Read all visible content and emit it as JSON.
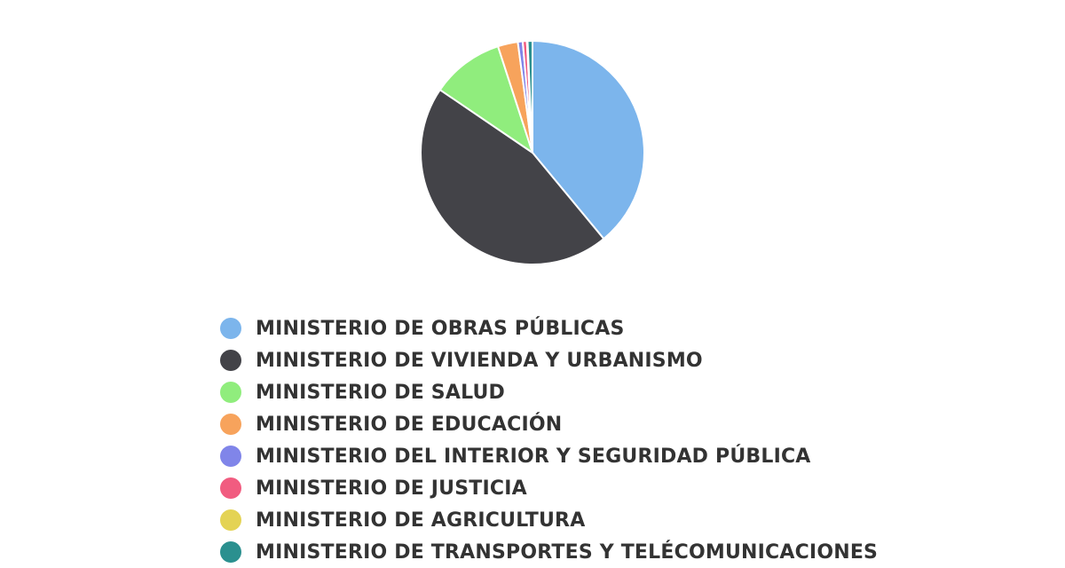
{
  "chart_data": {
    "type": "pie",
    "title": "",
    "legend_position": "bottom",
    "slices": [
      {
        "label": "MINISTERIO DE OBRAS PÚBLICAS",
        "value": 39.0,
        "color": "#7cb5ec"
      },
      {
        "label": "MINISTERIO DE VIVIENDA Y URBANISMO",
        "value": 45.5,
        "color": "#434348"
      },
      {
        "label": "MINISTERIO DE SALUD",
        "value": 10.5,
        "color": "#90ed7d"
      },
      {
        "label": "MINISTERIO DE EDUCACIÓN",
        "value": 2.9,
        "color": "#f7a35c"
      },
      {
        "label": "MINISTERIO DEL INTERIOR Y SEGURIDAD PÚBLICA",
        "value": 0.7,
        "color": "#8085e9"
      },
      {
        "label": "MINISTERIO DE JUSTICIA",
        "value": 0.6,
        "color": "#f15c80"
      },
      {
        "label": "MINISTERIO DE AGRICULTURA",
        "value": 0.1,
        "color": "#e4d354"
      },
      {
        "label": "MINISTERIO DE TRANSPORTES Y TELÉCOMUNICACIONES",
        "value": 0.7,
        "color": "#2b908f"
      }
    ]
  }
}
